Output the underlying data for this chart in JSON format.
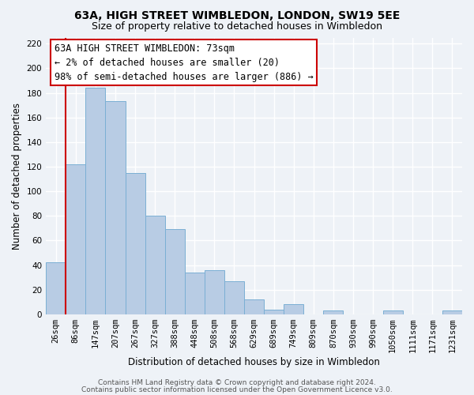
{
  "title": "63A, HIGH STREET WIMBLEDON, LONDON, SW19 5EE",
  "subtitle": "Size of property relative to detached houses in Wimbledon",
  "xlabel": "Distribution of detached houses by size in Wimbledon",
  "ylabel": "Number of detached properties",
  "bar_labels": [
    "26sqm",
    "86sqm",
    "147sqm",
    "207sqm",
    "267sqm",
    "327sqm",
    "388sqm",
    "448sqm",
    "508sqm",
    "568sqm",
    "629sqm",
    "689sqm",
    "749sqm",
    "809sqm",
    "870sqm",
    "930sqm",
    "990sqm",
    "1050sqm",
    "1111sqm",
    "1171sqm",
    "1231sqm"
  ],
  "bar_values": [
    42,
    122,
    184,
    173,
    115,
    80,
    69,
    34,
    36,
    27,
    12,
    4,
    8,
    0,
    3,
    0,
    0,
    3,
    0,
    0,
    3
  ],
  "bar_color": "#b8cce4",
  "bar_edge_color": "#7bafd4",
  "highlight_color": "#cc0000",
  "annotation_title": "63A HIGH STREET WIMBLEDON: 73sqm",
  "annotation_line1": "← 2% of detached houses are smaller (20)",
  "annotation_line2": "98% of semi-detached houses are larger (886) →",
  "annotation_box_color": "#cc0000",
  "ylim": [
    0,
    225
  ],
  "yticks": [
    0,
    20,
    40,
    60,
    80,
    100,
    120,
    140,
    160,
    180,
    200,
    220
  ],
  "footer1": "Contains HM Land Registry data © Crown copyright and database right 2024.",
  "footer2": "Contains public sector information licensed under the Open Government Licence v3.0.",
  "bg_color": "#eef2f7",
  "plot_bg_color": "#eef2f7",
  "grid_color": "#ffffff",
  "title_fontsize": 10,
  "subtitle_fontsize": 9,
  "axis_label_fontsize": 8.5,
  "tick_fontsize": 7.5,
  "annotation_fontsize": 8.5,
  "footer_fontsize": 6.5
}
